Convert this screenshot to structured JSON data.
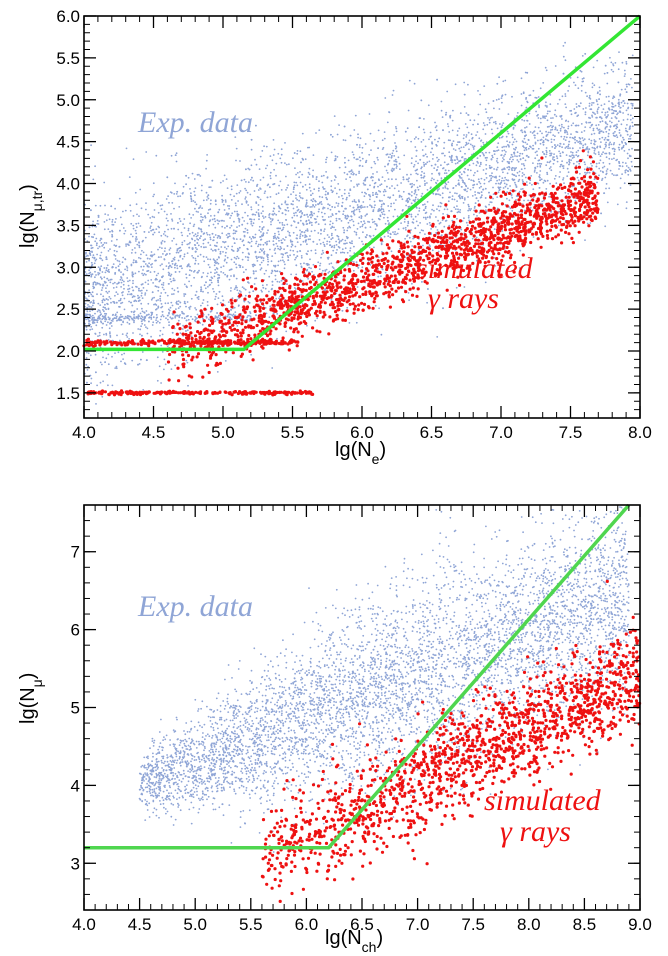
{
  "colors": {
    "exp_data": "#8fa5d6",
    "simulated": "#ee1111",
    "cut_top": "#33e633",
    "cut_bottom": "#4fd64f"
  },
  "chart_data": [
    {
      "type": "scatter",
      "xlabel": "lg(N_e)",
      "ylabel": "lg(N_μ,tr)",
      "xlim": [
        4.0,
        8.0
      ],
      "ylim": [
        1.2,
        6.0
      ],
      "xticks": [
        "4.0",
        "4.5",
        "5.0",
        "5.5",
        "6.0",
        "6.5",
        "7.0",
        "7.5",
        "8.0"
      ],
      "yticks": [
        "1.5",
        "2.0",
        "2.5",
        "3.0",
        "3.5",
        "4.0",
        "4.5",
        "5.0",
        "5.5",
        "6.0"
      ],
      "annotations": {
        "exp": "Exp. data",
        "sim_line1": "simulated",
        "sim_line2": "γ rays"
      },
      "series": [
        {
          "name": "Exp. data",
          "description_points": "dense cloud",
          "color": "#8fa5d6"
        },
        {
          "name": "simulated γ rays",
          "color": "#ee1111"
        }
      ],
      "cut_line": {
        "x": [
          4.0,
          5.15,
          8.0
        ],
        "y": [
          2.02,
          2.02,
          6.0
        ]
      }
    },
    {
      "type": "scatter",
      "xlabel": "lg(N_ch)",
      "ylabel": "lg(N_μ)",
      "xlim": [
        4.0,
        9.0
      ],
      "ylim": [
        2.4,
        7.6
      ],
      "xticks": [
        "4.0",
        "4.5",
        "5.0",
        "5.5",
        "6.0",
        "6.5",
        "7.0",
        "7.5",
        "8.0",
        "8.5",
        "9.0"
      ],
      "yticks": [
        "3",
        "4",
        "5",
        "6",
        "7"
      ],
      "annotations": {
        "exp": "Exp. data",
        "sim_line1": "simulated",
        "sim_line2": "γ rays"
      },
      "series": [
        {
          "name": "Exp. data",
          "color": "#8fa5d6"
        },
        {
          "name": "simulated γ rays",
          "color": "#ee1111"
        }
      ],
      "cut_line": {
        "x": [
          4.0,
          6.2,
          8.9
        ],
        "y": [
          3.2,
          3.2,
          7.6
        ]
      }
    }
  ]
}
